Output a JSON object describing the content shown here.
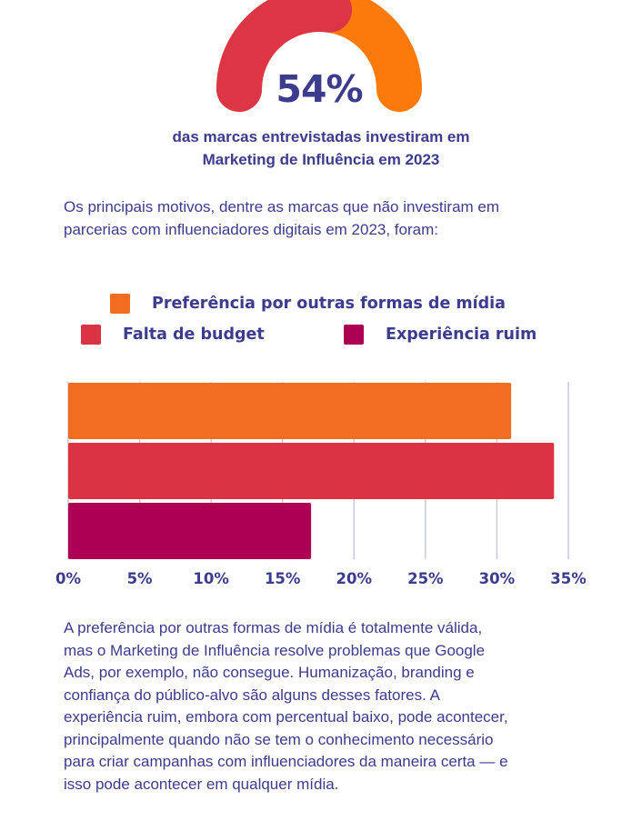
{
  "header": {
    "gauge_value": "54%",
    "gauge_fraction": 0.54,
    "headline_line1": "das marcas entrevistadas investiram em",
    "headline_line2": "Marketing de Influência em 2023"
  },
  "intro": {
    "line1": "Os principais motivos, dentre as marcas que não investiram em",
    "line2": "parcerias com influenciadores digitais em 2023, foram:"
  },
  "colors": {
    "orange": "#f06d22",
    "red": "#db3344",
    "magenta": "#ad0052",
    "gauge_red": "#dc3545",
    "gauge_orange": "#fb7a0a",
    "text": "#3d3b8e",
    "grid": "#c8c8e0"
  },
  "chart_data": {
    "type": "bar",
    "orientation": "horizontal",
    "series": [
      {
        "name": "Preferência por outras formas de mídia",
        "value": 31,
        "color": "#f06d22"
      },
      {
        "name": "Falta de budget",
        "value": 34,
        "color": "#db3344"
      },
      {
        "name": "Experiência ruim",
        "value": 17,
        "color": "#ad0052"
      }
    ],
    "xlim": [
      0,
      35
    ],
    "x_ticks": [
      "0%",
      "5%",
      "10%",
      "15%",
      "20%",
      "25%",
      "30%",
      "35%"
    ],
    "grid": true,
    "legend_position": "top"
  },
  "body": {
    "lines": [
      "A preferência por outras formas de mídia é totalmente válida,",
      "mas o Marketing de Influência resolve problemas que Google",
      "Ads, por exemplo, não consegue. Humanização, branding e",
      "confiança do público-alvo são alguns desses fatores. A",
      "experiência ruim, embora com percentual baixo, pode acontecer,",
      "principalmente quando não se tem o conhecimento necessário",
      "para criar campanhas com influenciadores da maneira certa — e",
      "isso pode acontecer em qualquer mídia."
    ]
  }
}
